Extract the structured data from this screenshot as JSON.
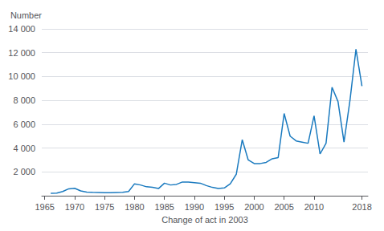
{
  "chart_data": {
    "type": "line",
    "x": [
      1966,
      1967,
      1968,
      1969,
      1970,
      1971,
      1972,
      1973,
      1974,
      1975,
      1976,
      1977,
      1978,
      1979,
      1980,
      1981,
      1982,
      1983,
      1984,
      1985,
      1986,
      1987,
      1988,
      1989,
      1990,
      1991,
      1992,
      1993,
      1994,
      1995,
      1996,
      1997,
      1998,
      1999,
      2000,
      2001,
      2002,
      2003,
      2004,
      2005,
      2006,
      2007,
      2008,
      2009,
      2010,
      2011,
      2012,
      2013,
      2014,
      2015,
      2016,
      2017,
      2018
    ],
    "values": [
      200,
      220,
      350,
      580,
      620,
      400,
      300,
      280,
      270,
      260,
      260,
      270,
      280,
      350,
      1000,
      900,
      750,
      700,
      600,
      1050,
      900,
      950,
      1150,
      1150,
      1100,
      1050,
      850,
      700,
      600,
      650,
      1000,
      1800,
      4700,
      3000,
      2700,
      2700,
      2800,
      3100,
      3200,
      6900,
      5000,
      4600,
      4500,
      4400,
      6700,
      3500,
      4400,
      9100,
      7900,
      4500,
      8000,
      12300,
      9200
    ],
    "color": "#1a7abf",
    "ylabel": "Number",
    "xlabel": "Change of act in 2003",
    "xlim": [
      1964.5,
      2019
    ],
    "xticks": [
      1965,
      1970,
      1975,
      1980,
      1985,
      1990,
      1995,
      2000,
      2005,
      2010,
      2018
    ],
    "ylim": [
      0,
      14000
    ],
    "yticks": [
      {
        "value": 0,
        "label": ""
      },
      {
        "value": 2000,
        "label": "2 000"
      },
      {
        "value": 4000,
        "label": "4 000"
      },
      {
        "value": 6000,
        "label": "6 000"
      },
      {
        "value": 8000,
        "label": "8 000"
      },
      {
        "value": 10000,
        "label": "10 000"
      },
      {
        "value": 12000,
        "label": "12 000"
      },
      {
        "value": 14000,
        "label": "14 000"
      }
    ],
    "grid": true
  }
}
